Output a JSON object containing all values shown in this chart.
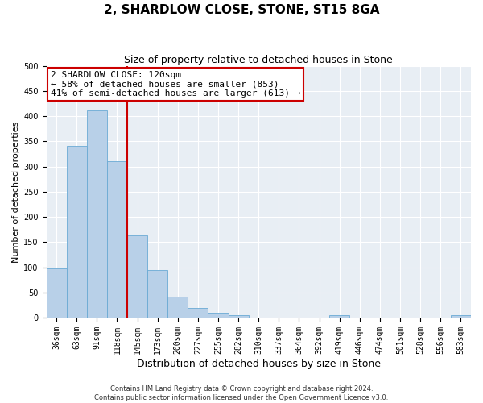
{
  "title": "2, SHARDLOW CLOSE, STONE, ST15 8GA",
  "subtitle": "Size of property relative to detached houses in Stone",
  "xlabel": "Distribution of detached houses by size in Stone",
  "ylabel": "Number of detached properties",
  "bin_labels": [
    "36sqm",
    "63sqm",
    "91sqm",
    "118sqm",
    "145sqm",
    "173sqm",
    "200sqm",
    "227sqm",
    "255sqm",
    "282sqm",
    "310sqm",
    "337sqm",
    "364sqm",
    "392sqm",
    "419sqm",
    "446sqm",
    "474sqm",
    "501sqm",
    "528sqm",
    "556sqm",
    "583sqm"
  ],
  "bar_heights": [
    97,
    341,
    411,
    311,
    164,
    94,
    42,
    19,
    10,
    5,
    0,
    0,
    0,
    0,
    5,
    0,
    0,
    0,
    0,
    0,
    5
  ],
  "bar_color": "#b8d0e8",
  "bar_edge_color": "#6aaad4",
  "vline_color": "#cc0000",
  "annotation_box_text": "2 SHARDLOW CLOSE: 120sqm\n← 58% of detached houses are smaller (853)\n41% of semi-detached houses are larger (613) →",
  "annotation_box_facecolor": "white",
  "annotation_box_edgecolor": "#cc0000",
  "ylim": [
    0,
    500
  ],
  "yticks": [
    0,
    50,
    100,
    150,
    200,
    250,
    300,
    350,
    400,
    450,
    500
  ],
  "background_color": "#e8eef4",
  "grid_color": "white",
  "footer_line1": "Contains HM Land Registry data © Crown copyright and database right 2024.",
  "footer_line2": "Contains public sector information licensed under the Open Government Licence v3.0.",
  "title_fontsize": 11,
  "subtitle_fontsize": 9,
  "xlabel_fontsize": 9,
  "ylabel_fontsize": 8,
  "annotation_fontsize": 8,
  "tick_fontsize": 7,
  "footer_fontsize": 6
}
